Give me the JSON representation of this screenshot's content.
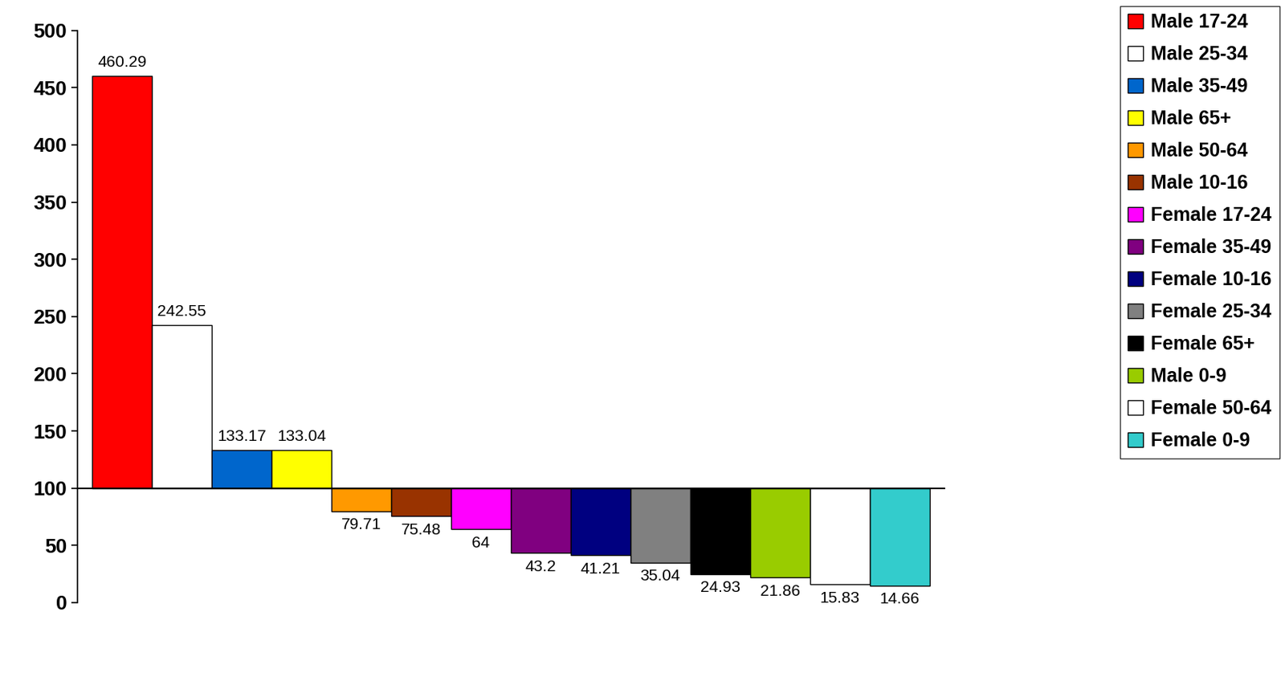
{
  "chart_data": {
    "type": "bar",
    "categories": [
      "Male 17-24",
      "Male 25-34",
      "Male 35-49",
      "Male 65+",
      "Male 50-64",
      "Male 10-16",
      "Female 17-24",
      "Female 35-49",
      "Female 10-16",
      "Female 25-34",
      "Female 65+",
      "Male 0-9",
      "Female 50-64",
      "Female 0-9"
    ],
    "values": [
      460.29,
      242.55,
      133.17,
      133.04,
      79.71,
      75.48,
      64,
      43.2,
      41.21,
      35.04,
      24.93,
      21.86,
      15.83,
      14.66
    ],
    "colors": [
      "#ff0000",
      "#ffffff",
      "#0066cc",
      "#ffff00",
      "#ff9900",
      "#993300",
      "#ff00ff",
      "#800080",
      "#000080",
      "#808080",
      "#000000",
      "#99cc00",
      "#ffffff",
      "#33cccc"
    ],
    "baseline": 100,
    "ylim": [
      0,
      500
    ],
    "yticks": [
      0,
      50,
      100,
      150,
      200,
      250,
      300,
      350,
      400,
      450,
      500
    ],
    "data_labels": true,
    "tick_labels": "y",
    "legend": "upper right"
  }
}
